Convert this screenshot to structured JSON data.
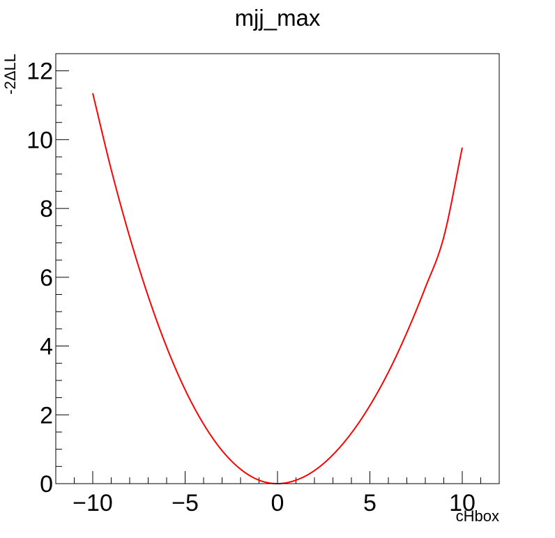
{
  "chart_data": {
    "type": "line",
    "title": "mjj_max",
    "xlabel": "cHbox",
    "ylabel": "-2ΔLL",
    "xlim": [
      -12,
      12
    ],
    "ylim": [
      0,
      12.5
    ],
    "x_ticks": [
      -10,
      -5,
      0,
      5,
      10
    ],
    "x_tick_labels": [
      "−10",
      "−5",
      "0",
      "5",
      "10"
    ],
    "y_ticks": [
      0,
      2,
      4,
      6,
      8,
      10,
      12
    ],
    "y_tick_labels": [
      "0",
      "2",
      "4",
      "6",
      "8",
      "10",
      "12"
    ],
    "grid": false,
    "legend": "none",
    "series": [
      {
        "color": "#ff0000",
        "x": [
          -10,
          -9,
          -8,
          -7,
          -6,
          -5,
          -4,
          -3,
          -2,
          -1,
          0,
          1,
          2,
          3,
          4,
          5,
          6,
          7,
          8,
          9,
          10
        ],
        "y": [
          11.35,
          9.13,
          7.17,
          5.45,
          3.97,
          2.73,
          1.73,
          0.96,
          0.42,
          0.1,
          0.0,
          0.1,
          0.38,
          0.84,
          1.47,
          2.27,
          3.24,
          4.39,
          5.7,
          7.17,
          9.77
        ]
      }
    ]
  }
}
